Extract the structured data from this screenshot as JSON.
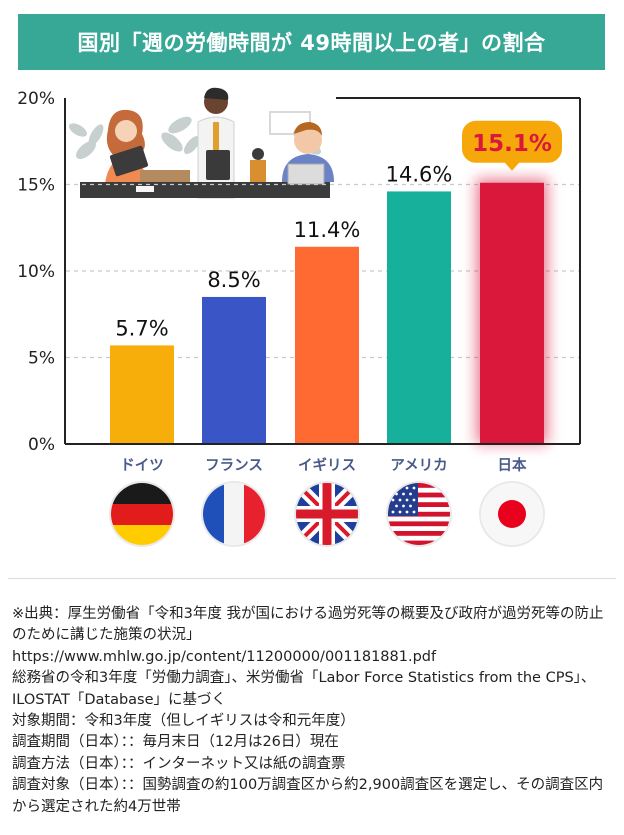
{
  "title": "国別「週の労働時間が 49時間以上の者」の割合",
  "chart_data": {
    "type": "bar",
    "categories": [
      "ドイツ",
      "フランス",
      "イギリス",
      "アメリカ",
      "日本"
    ],
    "values": [
      5.7,
      8.5,
      11.4,
      14.6,
      15.1
    ],
    "value_labels": [
      "5.7%",
      "8.5%",
      "11.4%",
      "14.6%",
      "15.1%"
    ],
    "bar_colors": [
      "#f8ae0a",
      "#3a55c6",
      "#fe6a32",
      "#17b09a",
      "#d9183c"
    ],
    "highlight_color": "#f6a80b",
    "highlight_category": "日本",
    "yticks": [
      "0%",
      "5%",
      "10%",
      "15%",
      "20%"
    ],
    "ylim": [
      0,
      20
    ],
    "grid": "dashed-horizontal"
  },
  "flags": [
    "germany-flag",
    "france-flag",
    "uk-flag",
    "usa-flag",
    "japan-flag"
  ],
  "notes": [
    "※出典：厚生労働省「令和3年度 我が国における過労死等の概要及び政府が過労死等の防止のために講じた施策の状況」",
    "https://www.mhlw.go.jp/content/11200000/001181881.pdf",
    "総務省の令和3年度「労働力調査」、米労働省「Labor Force Statistics from the CPS」、ILOSTAT「Database」に基づく",
    "対象期間：令和3年度（但しイギリスは令和元年度）",
    "調査期間（日本）：：毎月末日（12月は26日）現在",
    "調査方法（日本）：：インターネット又は紙の調査票",
    "調査対象（日本）：：国勢調査の約100万調査区から約2,900調査区を選定し、その調査区内から選定された約4万世帯"
  ]
}
